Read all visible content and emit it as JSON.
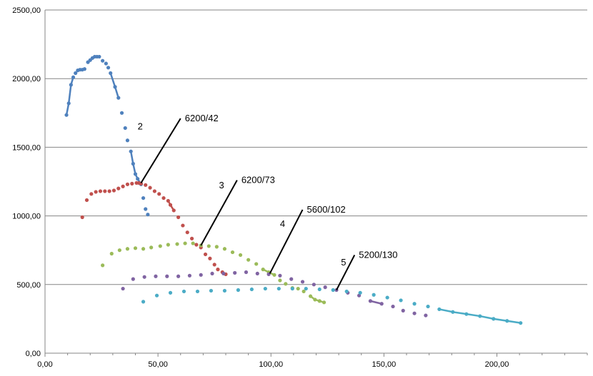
{
  "chart_data": {
    "type": "scatter",
    "title": "",
    "xlabel": "",
    "ylabel": "",
    "xlim": [
      0,
      240
    ],
    "ylim": [
      0,
      2500
    ],
    "grid": "horizontal",
    "x_ticks": [
      "0,00",
      "50,00",
      "100,00",
      "150,00",
      "200,00"
    ],
    "y_ticks": [
      "0,00",
      "500,00",
      "1000,00",
      "1500,00",
      "2000,00",
      "2500,00"
    ],
    "series": [
      {
        "color": "#4F81BD",
        "x": [
          9.5,
          10.5,
          11.5,
          12.5,
          13.5,
          14.5,
          15.5,
          16.5,
          17.5,
          19.0,
          20.0,
          21.0,
          22.0,
          23.0,
          24.0,
          25.5,
          27.0,
          28.0,
          29.0,
          31.0,
          32.5,
          34.0,
          35.5,
          36.5,
          38.0,
          39.0,
          40.0,
          41.0,
          42.5,
          43.5,
          44.5,
          45.5
        ],
        "y": [
          1735,
          1820,
          1955,
          2010,
          2040,
          2060,
          2065,
          2065,
          2070,
          2120,
          2135,
          2150,
          2160,
          2160,
          2160,
          2130,
          2110,
          2080,
          2040,
          1940,
          1860,
          1750,
          1640,
          1550,
          1470,
          1380,
          1305,
          1270,
          1230,
          1130,
          1050,
          1010
        ],
        "connected_segments": [
          [
            0,
            3
          ],
          [
            18,
            20
          ],
          [
            24,
            28
          ]
        ]
      },
      {
        "color": "#C0504D",
        "x": [
          16.5,
          18.5,
          20.5,
          22.5,
          24.5,
          26.5,
          28.5,
          30.5,
          32.5,
          34.5,
          36.5,
          38.5,
          40.5,
          41.5,
          42.5,
          44.5,
          46.5,
          48.5,
          50.5,
          52.5,
          54.5,
          55.5,
          57.0,
          59.0,
          61.0,
          63.0,
          65.0,
          67.0,
          69.0,
          71.0,
          73.0,
          75.0,
          76.5,
          78.5,
          80.0
        ],
        "y": [
          990,
          1115,
          1160,
          1175,
          1180,
          1180,
          1180,
          1185,
          1200,
          1215,
          1230,
          1235,
          1240,
          1240,
          1235,
          1225,
          1205,
          1180,
          1160,
          1130,
          1110,
          1080,
          1040,
          990,
          930,
          880,
          835,
          790,
          770,
          720,
          690,
          645,
          610,
          590,
          575
        ],
        "connected_segments": [
          [
            20,
            22
          ]
        ]
      },
      {
        "color": "#9BBB59",
        "x": [
          25.5,
          29.5,
          33.0,
          36.5,
          40.0,
          43.5,
          47.0,
          51.0,
          54.5,
          58.5,
          62.0,
          65.5,
          69.0,
          72.5,
          76.0,
          79.5,
          83.0,
          86.5,
          90.0,
          93.5,
          96.5,
          99.0,
          101.5,
          104.0,
          106.5,
          109.5,
          112.0,
          114.5,
          117.5,
          119.5,
          121.5,
          123.5
        ],
        "y": [
          640,
          725,
          750,
          760,
          765,
          760,
          770,
          780,
          790,
          795,
          800,
          800,
          785,
          780,
          775,
          760,
          735,
          715,
          680,
          650,
          610,
          590,
          570,
          530,
          505,
          475,
          470,
          450,
          415,
          390,
          380,
          370
        ],
        "connected_segments": [
          [
            20,
            22
          ],
          [
            28,
            31
          ]
        ]
      },
      {
        "color": "#8064A2",
        "x": [
          34.5,
          39.0,
          44.0,
          49.0,
          54.0,
          59.0,
          64.0,
          69.0,
          74.0,
          79.0,
          84.0,
          89.0,
          94.0,
          99.0,
          104.0,
          109.0,
          114.0,
          119.0,
          124.0,
          129.0,
          134.0,
          139.0,
          144.0,
          149.0,
          154.0,
          158.5,
          163.5,
          168.5
        ],
        "y": [
          470,
          540,
          555,
          560,
          560,
          560,
          565,
          570,
          580,
          580,
          585,
          590,
          580,
          575,
          565,
          540,
          520,
          500,
          480,
          460,
          440,
          420,
          380,
          360,
          340,
          310,
          290,
          275
        ],
        "connected_segments": [
          [
            22,
            23
          ]
        ]
      },
      {
        "color": "#4BACC6",
        "x": [
          43.5,
          49.5,
          55.5,
          61.5,
          67.5,
          73.5,
          79.5,
          85.5,
          91.5,
          97.5,
          103.5,
          109.5,
          115.5,
          121.5,
          127.5,
          133.5,
          139.5,
          145.5,
          151.5,
          157.5,
          163.5,
          169.5,
          174.5,
          180.5,
          186.5,
          192.5,
          198.5,
          204.5,
          210.5
        ],
        "y": [
          375,
          420,
          440,
          450,
          450,
          455,
          455,
          460,
          465,
          470,
          470,
          470,
          470,
          465,
          460,
          450,
          440,
          425,
          405,
          385,
          360,
          340,
          320,
          300,
          285,
          270,
          250,
          235,
          220
        ],
        "connected_segments": [
          [
            22,
            28
          ]
        ]
      }
    ],
    "annotations": [
      {
        "series_label": "2",
        "value_label": "6200/42",
        "point": [
          42.5,
          1240
        ],
        "label_end": [
          60,
          1710
        ],
        "label_pos": [
          41,
          1630
        ]
      },
      {
        "series_label": "3",
        "value_label": "6200/73",
        "point": [
          69.0,
          785
        ],
        "label_end": [
          85,
          1260
        ],
        "label_pos": [
          77,
          1200
        ]
      },
      {
        "series_label": "4",
        "value_label": "5600/102",
        "point": [
          99.5,
          580
        ],
        "label_end": [
          114,
          1045
        ],
        "label_pos": [
          104,
          920
        ]
      },
      {
        "series_label": "5",
        "value_label": "5200/130",
        "point": [
          129.0,
          460
        ],
        "label_end": [
          137,
          715
        ],
        "label_pos": [
          131,
          640
        ]
      }
    ]
  }
}
